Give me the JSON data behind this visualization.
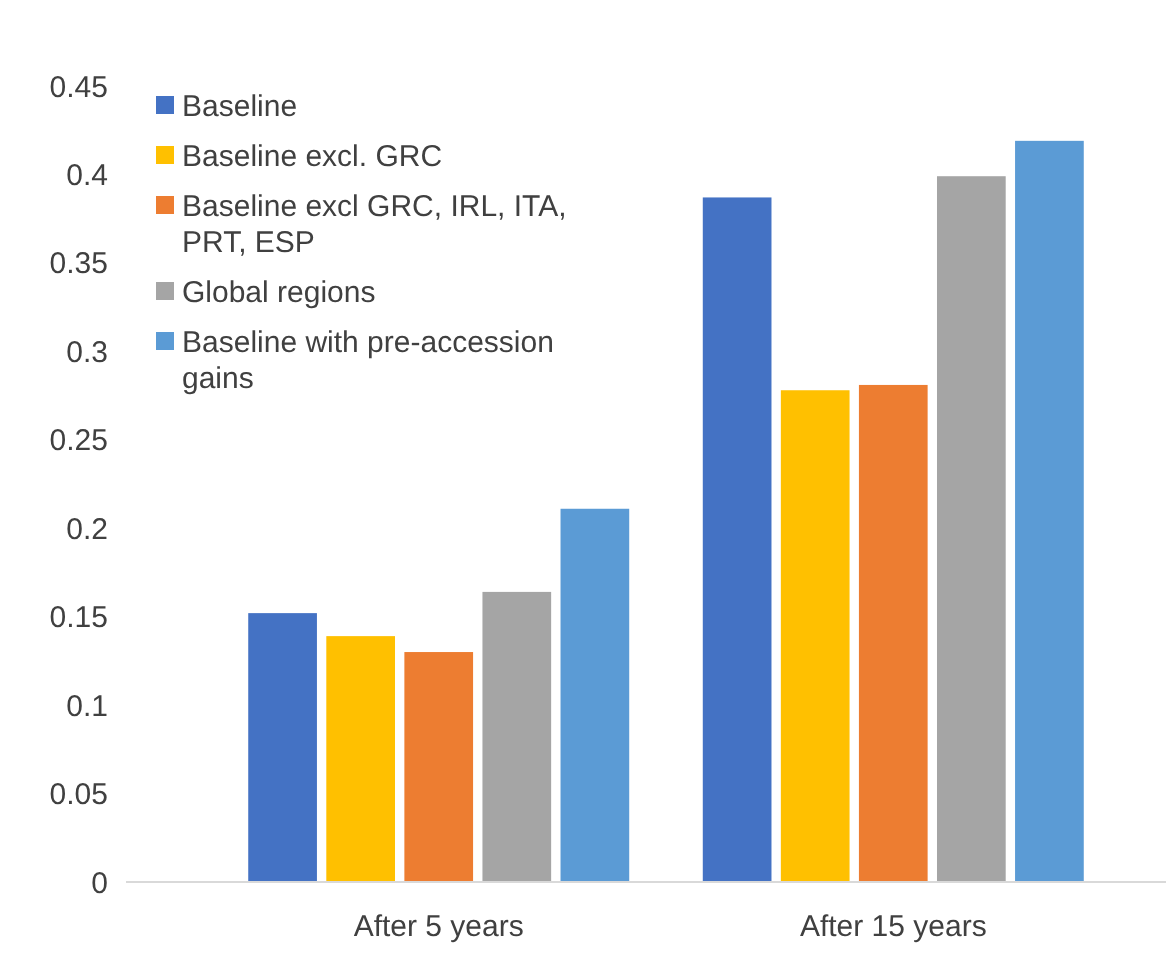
{
  "chart_data": {
    "type": "bar",
    "categories": [
      "After 5 years",
      "After 15 years"
    ],
    "series": [
      {
        "name": "Baseline",
        "color": "#4472c4",
        "values": [
          0.152,
          0.387
        ]
      },
      {
        "name": "Baseline excl. GRC",
        "color": "#ffc000",
        "values": [
          0.139,
          0.278
        ]
      },
      {
        "name": "Baseline excl GRC, IRL, ITA, PRT, ESP",
        "color": "#ed7d31",
        "values": [
          0.13,
          0.281
        ]
      },
      {
        "name": "Global regions",
        "color": "#a5a5a5",
        "values": [
          0.164,
          0.399
        ]
      },
      {
        "name": "Baseline with pre-accession gains",
        "color": "#5b9bd5",
        "values": [
          0.211,
          0.419
        ]
      }
    ],
    "ylim": [
      0,
      0.45
    ],
    "yticks": [
      0,
      0.05,
      0.1,
      0.15,
      0.2,
      0.25,
      0.3,
      0.35,
      0.4,
      0.45
    ],
    "grid": false,
    "legend": "top left"
  }
}
